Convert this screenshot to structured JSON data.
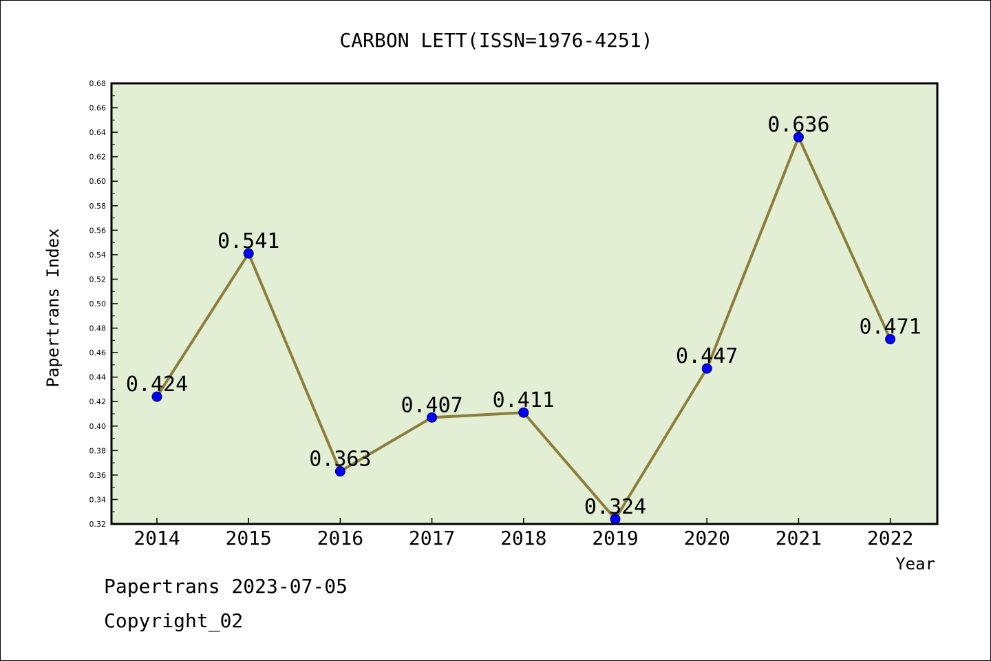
{
  "chart_data": {
    "type": "line",
    "title": "CARBON LETT(ISSN=1976-4251)",
    "xlabel": "Year",
    "ylabel": "Papertrans Index",
    "categories": [
      "2014",
      "2015",
      "2016",
      "2017",
      "2018",
      "2019",
      "2020",
      "2021",
      "2022"
    ],
    "values": [
      0.424,
      0.541,
      0.363,
      0.407,
      0.411,
      0.324,
      0.447,
      0.636,
      0.471
    ],
    "data_labels": [
      "0.424",
      "0.541",
      "0.363",
      "0.407",
      "0.411",
      "0.324",
      "0.447",
      "0.636",
      "0.471"
    ],
    "ylim": [
      0.32,
      0.68
    ],
    "y_ticks": [
      "0.32",
      "0.34",
      "0.36",
      "0.38",
      "0.40",
      "0.42",
      "0.44",
      "0.46",
      "0.48",
      "0.50",
      "0.52",
      "0.54",
      "0.56",
      "0.58",
      "0.60",
      "0.62",
      "0.64",
      "0.66",
      "0.68"
    ],
    "grid": false,
    "legend": "none",
    "colors": {
      "plot_background": "#e2efd5",
      "line": "#8c7e3a",
      "marker": "#0000ff"
    }
  },
  "footer": {
    "line1": "Papertrans 2023-07-05",
    "line2": "Copyright_02"
  }
}
